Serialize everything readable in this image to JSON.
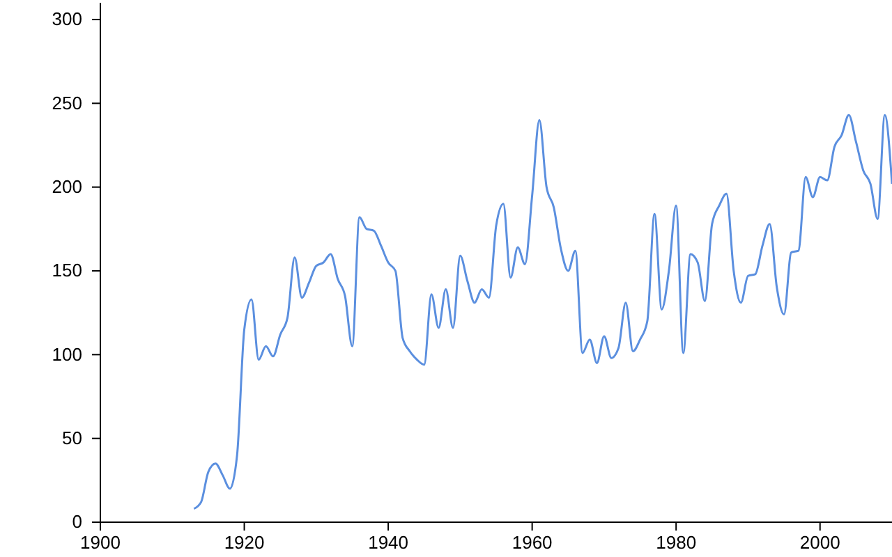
{
  "chart_data": {
    "type": "line",
    "x": [
      1913,
      1914,
      1915,
      1916,
      1917,
      1918,
      1919,
      1920,
      1921,
      1922,
      1923,
      1924,
      1925,
      1926,
      1927,
      1928,
      1929,
      1930,
      1931,
      1932,
      1933,
      1934,
      1935,
      1936,
      1937,
      1938,
      1939,
      1940,
      1941,
      1942,
      1943,
      1944,
      1945,
      1946,
      1947,
      1948,
      1949,
      1950,
      1951,
      1952,
      1953,
      1954,
      1955,
      1956,
      1957,
      1958,
      1959,
      1960,
      1961,
      1962,
      1963,
      1964,
      1965,
      1966,
      1967,
      1968,
      1969,
      1970,
      1971,
      1972,
      1973,
      1974,
      1975,
      1976,
      1977,
      1978,
      1979,
      1980,
      1981,
      1982,
      1983,
      1984,
      1985,
      1986,
      1987,
      1988,
      1989,
      1990,
      1991,
      1992,
      1993,
      1994,
      1995,
      1996,
      1997,
      1998,
      1999,
      2000,
      2001,
      2002,
      2003,
      2004,
      2005,
      2006,
      2007,
      2008,
      2009,
      2010
    ],
    "series": [
      {
        "color": "#5b8fdf",
        "values": [
          8,
          12,
          30,
          35,
          28,
          20,
          40,
          115,
          133,
          97,
          105,
          99,
          112,
          122,
          158,
          134,
          143,
          153,
          155,
          160,
          145,
          135,
          105,
          182,
          175,
          174,
          165,
          155,
          150,
          110,
          102,
          97,
          94,
          136,
          116,
          139,
          116,
          159,
          144,
          131,
          139,
          134,
          177,
          190,
          146,
          164,
          154,
          195,
          240,
          200,
          188,
          163,
          150,
          162,
          101,
          109,
          95,
          111,
          98,
          104,
          131,
          102,
          109,
          120,
          184,
          127,
          150,
          189,
          101,
          160,
          155,
          132,
          178,
          189,
          196,
          150,
          131,
          147,
          148,
          165,
          178,
          140,
          124,
          161,
          162,
          206,
          194,
          206,
          204,
          224,
          231,
          243,
          227,
          210,
          202,
          181,
          243,
          202
        ]
      }
    ],
    "xlim": [
      1900,
      2010
    ],
    "xticks": [
      1900,
      1920,
      1940,
      1960,
      1980,
      2000
    ],
    "ylim": [
      0,
      310
    ],
    "yticks": [
      0,
      50,
      100,
      150,
      200,
      250,
      300
    ],
    "grid": false
  }
}
